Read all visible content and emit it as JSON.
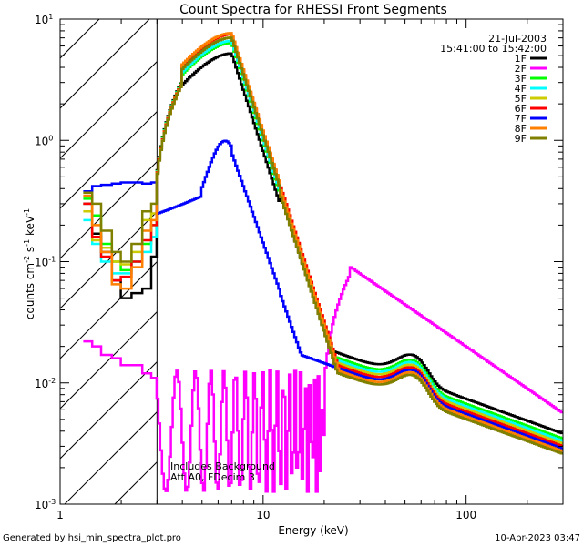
{
  "chart_data": {
    "type": "line",
    "title": "Count Spectra for RHESSI Front Segments",
    "xlabel": "Energy (keV)",
    "ylabel_base": "counts cm",
    "ylabel_sup1": "-2",
    "ylabel_mid": " s",
    "ylabel_sup2": "-1",
    "ylabel_end": " keV",
    "ylabel_sup3": "-1",
    "xscale": "log",
    "yscale": "log",
    "xlim": [
      1,
      300
    ],
    "ylim": [
      0.001,
      10
    ],
    "x_ticks": [
      {
        "value": 1,
        "label": "1"
      },
      {
        "value": 10,
        "label": "10"
      },
      {
        "value": 100,
        "label": "100"
      }
    ],
    "y_ticks": [
      {
        "value": 0.001,
        "base": "10",
        "exp": "-3"
      },
      {
        "value": 0.01,
        "base": "10",
        "exp": "-2"
      },
      {
        "value": 0.1,
        "base": "10",
        "exp": "-1"
      },
      {
        "value": 1,
        "base": "10",
        "exp": "0"
      },
      {
        "value": 10,
        "base": "10",
        "exp": "1"
      }
    ],
    "date": "21-Jul-2003",
    "time_range": "15:41:00 to 15:42:00",
    "threshold_kev": 3,
    "annotations": [
      "Includes Background",
      "Att A0, FDecim 3"
    ],
    "footer_left": "Generated by hsi_min_spectra_plot.pro",
    "footer_right": "10-Apr-2023 03:47",
    "series": [
      {
        "name": "1F",
        "color": "#000000",
        "y_low": [
          0.3,
          0.17,
          0.12,
          0.07,
          0.05,
          0.055,
          0.06,
          0.11,
          0.28
        ],
        "peak": 5.0
      },
      {
        "name": "2F",
        "color": "#ff00ff",
        "y_low": [
          0.022,
          0.02,
          0.017,
          0.016,
          0.014,
          0.014,
          0.012,
          0.011,
          0.01
        ],
        "peak": 0.0
      },
      {
        "name": "3F",
        "color": "#00ff00",
        "y_low": [
          0.33,
          0.24,
          0.14,
          0.1,
          0.085,
          0.1,
          0.14,
          0.2,
          0.33
        ],
        "peak": 6.2
      },
      {
        "name": "4F",
        "color": "#00ffff",
        "y_low": [
          0.22,
          0.14,
          0.1,
          0.08,
          0.08,
          0.1,
          0.12,
          0.16,
          0.3
        ],
        "peak": 6.5
      },
      {
        "name": "5F",
        "color": "#cccc00",
        "y_low": [
          0.26,
          0.15,
          0.13,
          0.1,
          0.095,
          0.12,
          0.22,
          0.25,
          0.4
        ],
        "peak": 7.0
      },
      {
        "name": "6F",
        "color": "#ff0000",
        "y_low": [
          0.3,
          0.16,
          0.11,
          0.07,
          0.075,
          0.1,
          0.15,
          0.2,
          0.35
        ],
        "peak": 7.5
      },
      {
        "name": "7F",
        "color": "#0000ff",
        "y_low": [
          0.38,
          0.42,
          0.43,
          0.44,
          0.45,
          0.45,
          0.44,
          0.45,
          0.48
        ],
        "peak": 0.8
      },
      {
        "name": "8F",
        "color": "#ff7f00",
        "y_low": [
          0.35,
          0.2,
          0.12,
          0.065,
          0.06,
          0.09,
          0.18,
          0.22,
          0.4
        ],
        "peak": 7.8
      },
      {
        "name": "9F",
        "color": "#808000",
        "y_low": [
          0.37,
          0.3,
          0.18,
          0.12,
          0.1,
          0.14,
          0.26,
          0.3,
          0.45
        ],
        "peak": 7.2
      }
    ]
  }
}
